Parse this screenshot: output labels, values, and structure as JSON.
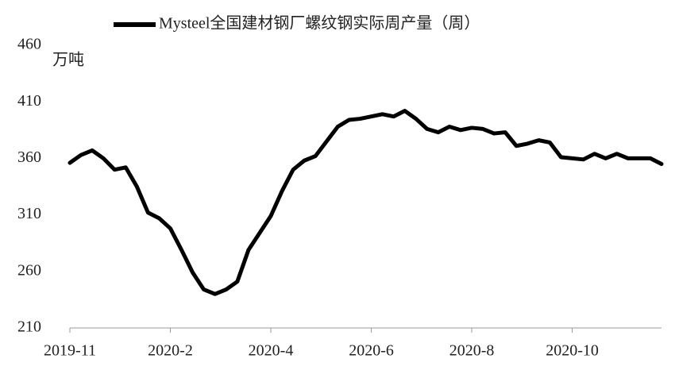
{
  "chart_data": {
    "type": "line",
    "y_unit": "万吨",
    "categories": [
      "2019-11",
      null,
      null,
      null,
      null,
      null,
      null,
      null,
      null,
      "2020-2",
      null,
      null,
      null,
      null,
      null,
      null,
      null,
      null,
      "2020-4",
      null,
      null,
      null,
      null,
      null,
      null,
      null,
      null,
      "2020-6",
      null,
      null,
      null,
      null,
      null,
      null,
      null,
      null,
      "2020-8",
      null,
      null,
      null,
      null,
      null,
      null,
      null,
      null,
      "2020-10",
      null,
      null,
      null,
      null,
      null,
      null,
      null,
      null
    ],
    "series": [
      {
        "name": "Mysteel全国建材钢厂螺纹钢实际周产量（周）",
        "color": "#000000",
        "values": [
          356,
          363,
          367,
          360,
          350,
          352,
          335,
          312,
          307,
          298,
          279,
          259,
          244,
          240,
          244,
          251,
          279,
          294,
          309,
          331,
          350,
          358,
          362,
          375,
          388,
          394,
          395,
          397,
          399,
          397,
          402,
          395,
          386,
          383,
          388,
          385,
          387,
          386,
          382,
          383,
          371,
          373,
          376,
          374,
          361,
          360,
          359,
          364,
          360,
          364,
          360,
          360,
          360,
          355
        ]
      }
    ],
    "ylim": [
      210,
      460
    ],
    "yticks": [
      210,
      260,
      310,
      360,
      410,
      460
    ],
    "grid": false
  }
}
